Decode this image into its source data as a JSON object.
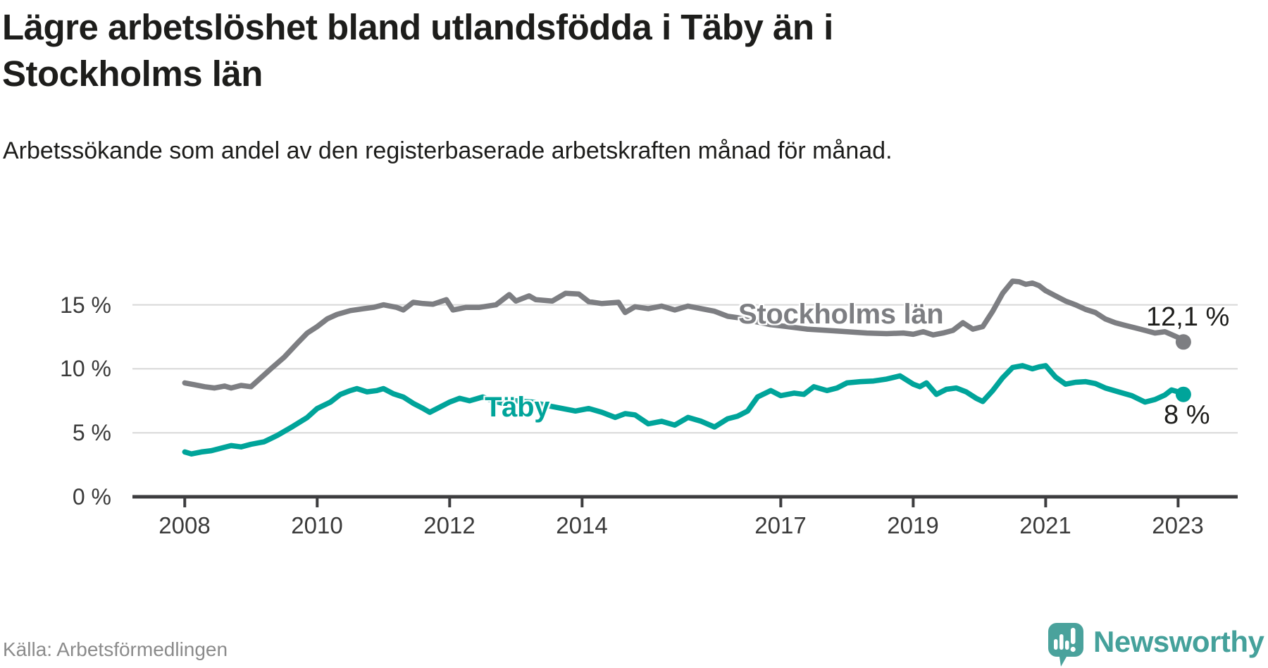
{
  "header": {
    "title": "Lägre arbetslöshet bland utlandsfödda i Täby än i Stockholms län",
    "subtitle": "Arbetssökande som andel av den registerbaserade arbetskraften månad för månad."
  },
  "footer": {
    "source": "Källa: Arbetsförmedlingen",
    "brand": "Newsworthy"
  },
  "colors": {
    "taby_line": "#00a49a",
    "stockholm_line": "#7d7e82",
    "axis": "#3d3d3f",
    "gridline": "#d8d8d8",
    "text_dark": "#1d1d1b",
    "tick_text": "#3a3a3a",
    "source_text": "#8b8b8b",
    "brand_teal": "#45a19b"
  },
  "chart_data": {
    "type": "line",
    "title": "Lägre arbetslöshet bland utlandsfödda i Täby än i Stockholms län",
    "xlabel": "",
    "ylabel": "Arbetssökande som andel av den registerbaserade arbetskraften",
    "grid": "horizontal",
    "legend_position": "inline-labels",
    "xlim": [
      2007.21,
      2023.9
    ],
    "ylim": [
      0,
      20.65
    ],
    "x_axis": {
      "ticks": [
        2008,
        2010,
        2012,
        2014,
        2017,
        2019,
        2021,
        2023
      ],
      "labels": [
        "2008",
        "2010",
        "2012",
        "2014",
        "2017",
        "2019",
        "2021",
        "2023"
      ]
    },
    "y_axis": {
      "ticks": [
        0,
        5,
        10,
        15
      ],
      "labels": [
        "0 %",
        "5 %",
        "10 %",
        "15 %"
      ]
    },
    "series": [
      {
        "name": "Stockholms län",
        "color": "#7d7e82",
        "end_label": "12,1 %",
        "end_value": 12.1,
        "points": [
          [
            2008.0,
            8.9
          ],
          [
            2008.15,
            8.75
          ],
          [
            2008.3,
            8.6
          ],
          [
            2008.45,
            8.5
          ],
          [
            2008.6,
            8.65
          ],
          [
            2008.7,
            8.5
          ],
          [
            2008.85,
            8.7
          ],
          [
            2009.0,
            8.6
          ],
          [
            2009.15,
            9.3
          ],
          [
            2009.3,
            10.0
          ],
          [
            2009.5,
            10.9
          ],
          [
            2009.7,
            12.0
          ],
          [
            2009.85,
            12.8
          ],
          [
            2010.0,
            13.3
          ],
          [
            2010.15,
            13.9
          ],
          [
            2010.3,
            14.25
          ],
          [
            2010.5,
            14.55
          ],
          [
            2010.7,
            14.7
          ],
          [
            2010.85,
            14.8
          ],
          [
            2011.0,
            15.0
          ],
          [
            2011.2,
            14.8
          ],
          [
            2011.3,
            14.6
          ],
          [
            2011.45,
            15.2
          ],
          [
            2011.6,
            15.1
          ],
          [
            2011.75,
            15.05
          ],
          [
            2011.95,
            15.4
          ],
          [
            2012.05,
            14.6
          ],
          [
            2012.25,
            14.8
          ],
          [
            2012.45,
            14.8
          ],
          [
            2012.7,
            15.0
          ],
          [
            2012.9,
            15.8
          ],
          [
            2013.0,
            15.3
          ],
          [
            2013.2,
            15.7
          ],
          [
            2013.3,
            15.4
          ],
          [
            2013.55,
            15.3
          ],
          [
            2013.75,
            15.9
          ],
          [
            2013.95,
            15.85
          ],
          [
            2014.1,
            15.25
          ],
          [
            2014.3,
            15.1
          ],
          [
            2014.55,
            15.2
          ],
          [
            2014.65,
            14.4
          ],
          [
            2014.8,
            14.85
          ],
          [
            2015.0,
            14.7
          ],
          [
            2015.2,
            14.9
          ],
          [
            2015.4,
            14.6
          ],
          [
            2015.6,
            14.9
          ],
          [
            2015.8,
            14.7
          ],
          [
            2016.0,
            14.5
          ],
          [
            2016.2,
            14.1
          ],
          [
            2016.35,
            14.0
          ],
          [
            2016.5,
            13.8
          ],
          [
            2016.7,
            13.6
          ],
          [
            2016.85,
            13.45
          ],
          [
            2017.1,
            13.3
          ],
          [
            2017.4,
            13.1
          ],
          [
            2017.7,
            13.0
          ],
          [
            2018.0,
            12.9
          ],
          [
            2018.3,
            12.8
          ],
          [
            2018.6,
            12.75
          ],
          [
            2018.85,
            12.8
          ],
          [
            2019.0,
            12.7
          ],
          [
            2019.15,
            12.9
          ],
          [
            2019.3,
            12.65
          ],
          [
            2019.45,
            12.8
          ],
          [
            2019.6,
            13.0
          ],
          [
            2019.75,
            13.6
          ],
          [
            2019.9,
            13.1
          ],
          [
            2020.05,
            13.3
          ],
          [
            2020.2,
            14.5
          ],
          [
            2020.35,
            15.9
          ],
          [
            2020.5,
            16.85
          ],
          [
            2020.6,
            16.8
          ],
          [
            2020.7,
            16.6
          ],
          [
            2020.8,
            16.7
          ],
          [
            2020.9,
            16.5
          ],
          [
            2021.0,
            16.1
          ],
          [
            2021.15,
            15.7
          ],
          [
            2021.3,
            15.3
          ],
          [
            2021.45,
            15.0
          ],
          [
            2021.6,
            14.65
          ],
          [
            2021.75,
            14.4
          ],
          [
            2021.9,
            13.9
          ],
          [
            2022.05,
            13.6
          ],
          [
            2022.2,
            13.4
          ],
          [
            2022.35,
            13.2
          ],
          [
            2022.5,
            13.0
          ],
          [
            2022.65,
            12.8
          ],
          [
            2022.8,
            12.9
          ],
          [
            2023.0,
            12.45
          ],
          [
            2023.08,
            12.1
          ]
        ]
      },
      {
        "name": "Täby",
        "color": "#00a49a",
        "end_label": "8 %",
        "end_value": 8.0,
        "points": [
          [
            2008.0,
            3.5
          ],
          [
            2008.1,
            3.35
          ],
          [
            2008.25,
            3.5
          ],
          [
            2008.4,
            3.6
          ],
          [
            2008.55,
            3.8
          ],
          [
            2008.7,
            4.0
          ],
          [
            2008.85,
            3.9
          ],
          [
            2009.0,
            4.1
          ],
          [
            2009.2,
            4.3
          ],
          [
            2009.4,
            4.8
          ],
          [
            2009.6,
            5.4
          ],
          [
            2009.85,
            6.2
          ],
          [
            2010.0,
            6.9
          ],
          [
            2010.2,
            7.4
          ],
          [
            2010.35,
            8.0
          ],
          [
            2010.5,
            8.3
          ],
          [
            2010.6,
            8.45
          ],
          [
            2010.75,
            8.2
          ],
          [
            2010.9,
            8.3
          ],
          [
            2011.0,
            8.45
          ],
          [
            2011.15,
            8.05
          ],
          [
            2011.3,
            7.8
          ],
          [
            2011.45,
            7.3
          ],
          [
            2011.6,
            6.9
          ],
          [
            2011.7,
            6.6
          ],
          [
            2011.85,
            7.0
          ],
          [
            2012.0,
            7.4
          ],
          [
            2012.15,
            7.7
          ],
          [
            2012.3,
            7.5
          ],
          [
            2012.5,
            7.8
          ],
          [
            2012.65,
            7.5
          ],
          [
            2012.8,
            7.3
          ],
          [
            2013.0,
            7.5
          ],
          [
            2013.25,
            7.4
          ],
          [
            2013.5,
            7.1
          ],
          [
            2013.7,
            6.9
          ],
          [
            2013.9,
            6.7
          ],
          [
            2014.1,
            6.9
          ],
          [
            2014.3,
            6.6
          ],
          [
            2014.5,
            6.2
          ],
          [
            2014.65,
            6.5
          ],
          [
            2014.8,
            6.4
          ],
          [
            2015.0,
            5.7
          ],
          [
            2015.2,
            5.9
          ],
          [
            2015.4,
            5.6
          ],
          [
            2015.6,
            6.2
          ],
          [
            2015.8,
            5.9
          ],
          [
            2016.0,
            5.45
          ],
          [
            2016.2,
            6.1
          ],
          [
            2016.35,
            6.3
          ],
          [
            2016.5,
            6.7
          ],
          [
            2016.65,
            7.8
          ],
          [
            2016.85,
            8.3
          ],
          [
            2017.0,
            7.9
          ],
          [
            2017.2,
            8.1
          ],
          [
            2017.35,
            8.0
          ],
          [
            2017.5,
            8.6
          ],
          [
            2017.7,
            8.3
          ],
          [
            2017.85,
            8.5
          ],
          [
            2018.0,
            8.9
          ],
          [
            2018.2,
            9.0
          ],
          [
            2018.4,
            9.05
          ],
          [
            2018.6,
            9.2
          ],
          [
            2018.8,
            9.45
          ],
          [
            2019.0,
            8.8
          ],
          [
            2019.1,
            8.6
          ],
          [
            2019.2,
            8.9
          ],
          [
            2019.35,
            8.0
          ],
          [
            2019.5,
            8.4
          ],
          [
            2019.65,
            8.5
          ],
          [
            2019.8,
            8.2
          ],
          [
            2019.95,
            7.7
          ],
          [
            2020.05,
            7.45
          ],
          [
            2020.2,
            8.3
          ],
          [
            2020.35,
            9.3
          ],
          [
            2020.5,
            10.1
          ],
          [
            2020.65,
            10.25
          ],
          [
            2020.8,
            10.0
          ],
          [
            2020.9,
            10.15
          ],
          [
            2021.0,
            10.25
          ],
          [
            2021.15,
            9.35
          ],
          [
            2021.3,
            8.8
          ],
          [
            2021.45,
            8.95
          ],
          [
            2021.6,
            9.0
          ],
          [
            2021.75,
            8.85
          ],
          [
            2021.9,
            8.5
          ],
          [
            2022.1,
            8.2
          ],
          [
            2022.3,
            7.9
          ],
          [
            2022.5,
            7.4
          ],
          [
            2022.65,
            7.6
          ],
          [
            2022.8,
            7.95
          ],
          [
            2022.9,
            8.35
          ],
          [
            2023.0,
            8.2
          ],
          [
            2023.08,
            8.0
          ]
        ]
      }
    ]
  }
}
